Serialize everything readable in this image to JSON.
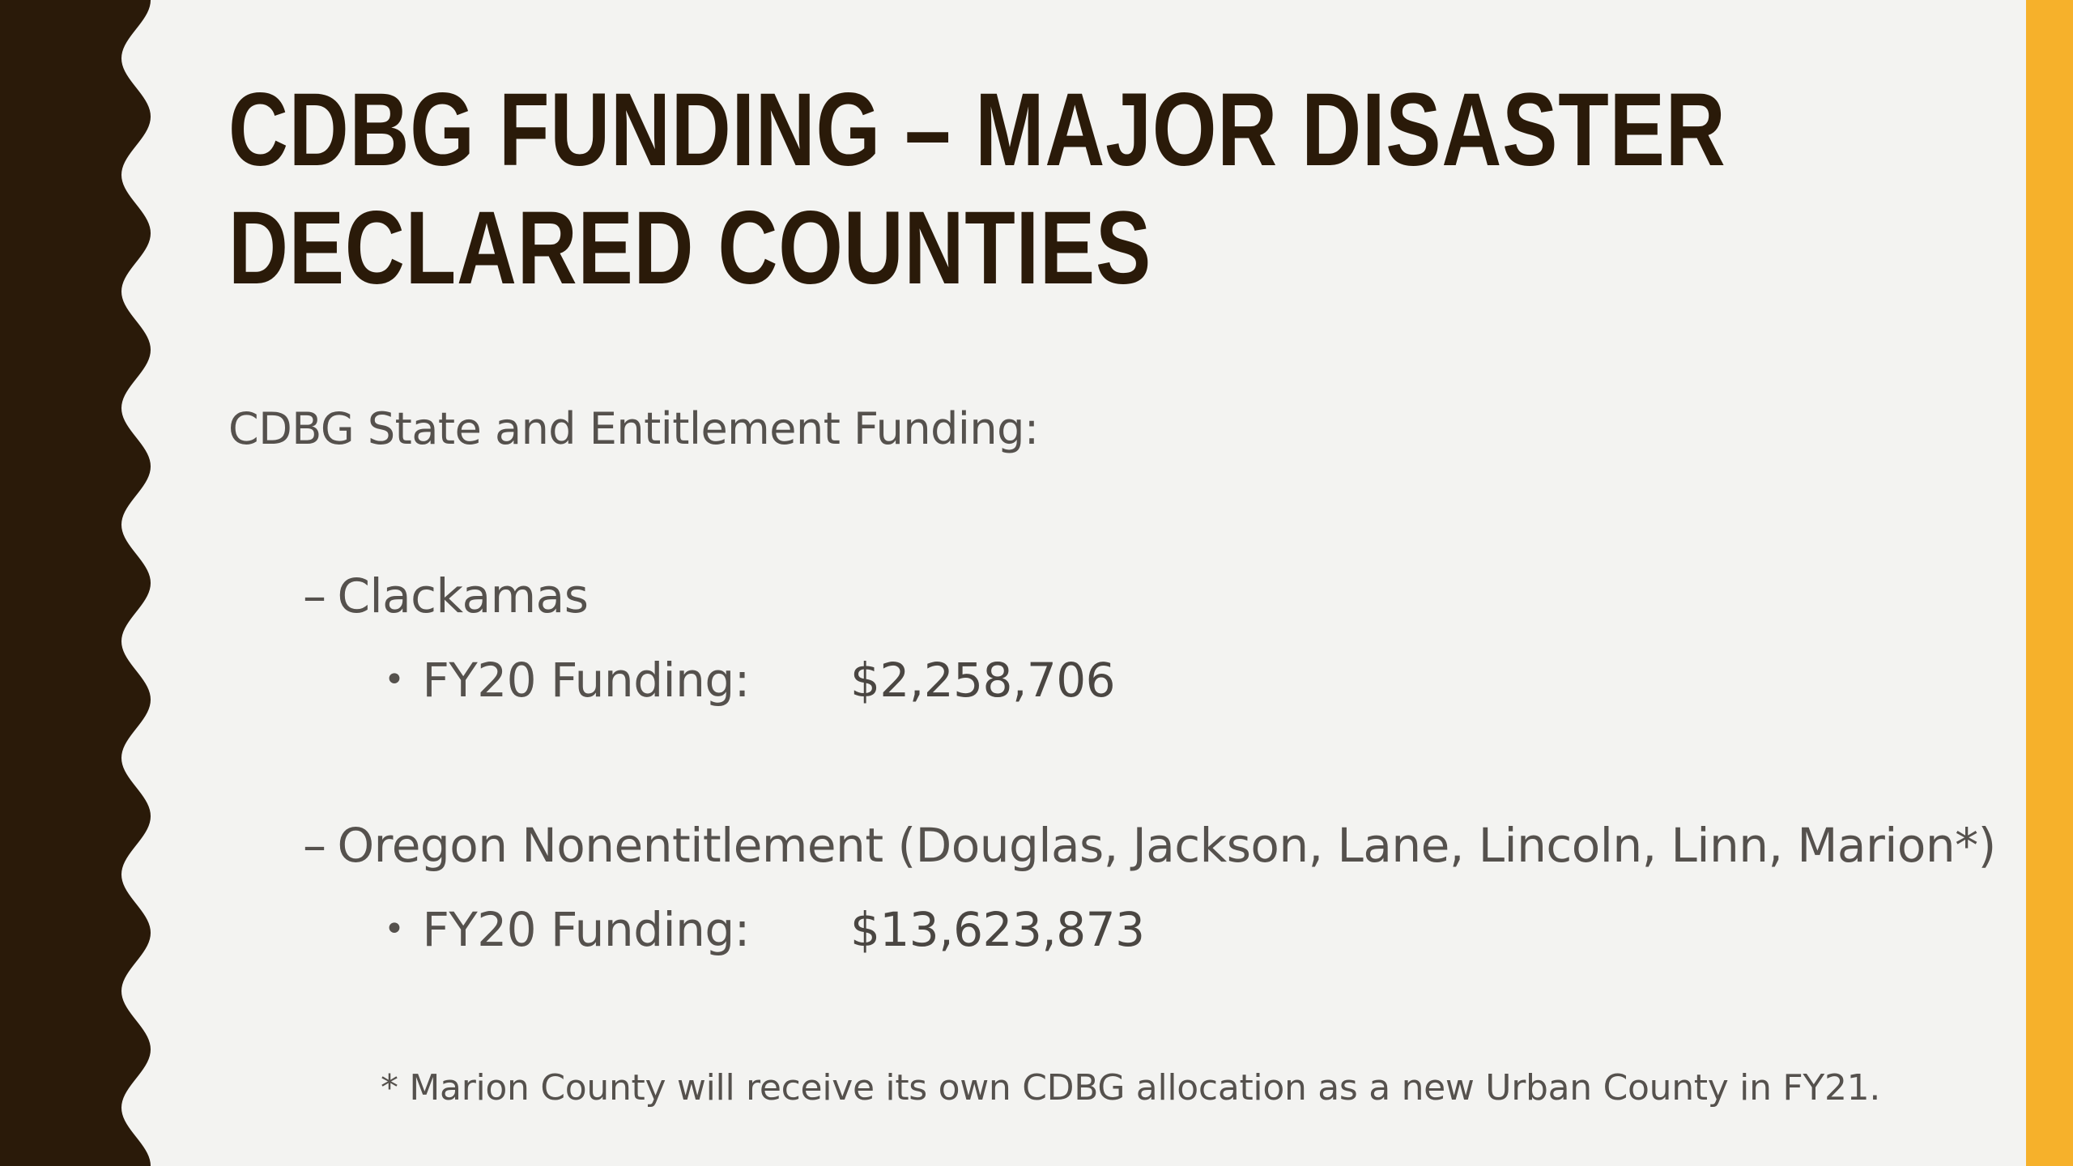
{
  "slide": {
    "title_line1": "CDBG FUNDING – MAJOR DISASTER",
    "title_line2": "DECLARED COUNTIES",
    "subheading": "CDBG State and Entitlement Funding:",
    "sections": [
      {
        "dash": "–",
        "name": "Clackamas",
        "bullet": "•",
        "funding_label": "FY20 Funding:",
        "funding_amount": "$2,258,706"
      },
      {
        "dash": "–",
        "name": "Oregon Nonentitlement (Douglas, Jackson, Lane, Lincoln, Linn, Marion*)",
        "bullet": "•",
        "funding_label": "FY20 Funding:",
        "funding_amount": "$13,623,873"
      }
    ],
    "footnote": "* Marion County will receive its own CDBG allocation as a new Urban County in FY21."
  },
  "colors": {
    "background": "#f3f3f1",
    "dark_band": "#2a1a09",
    "accent_bar": "#f6b12b",
    "title_text": "#2a1a09",
    "body_text": "#55514d"
  }
}
